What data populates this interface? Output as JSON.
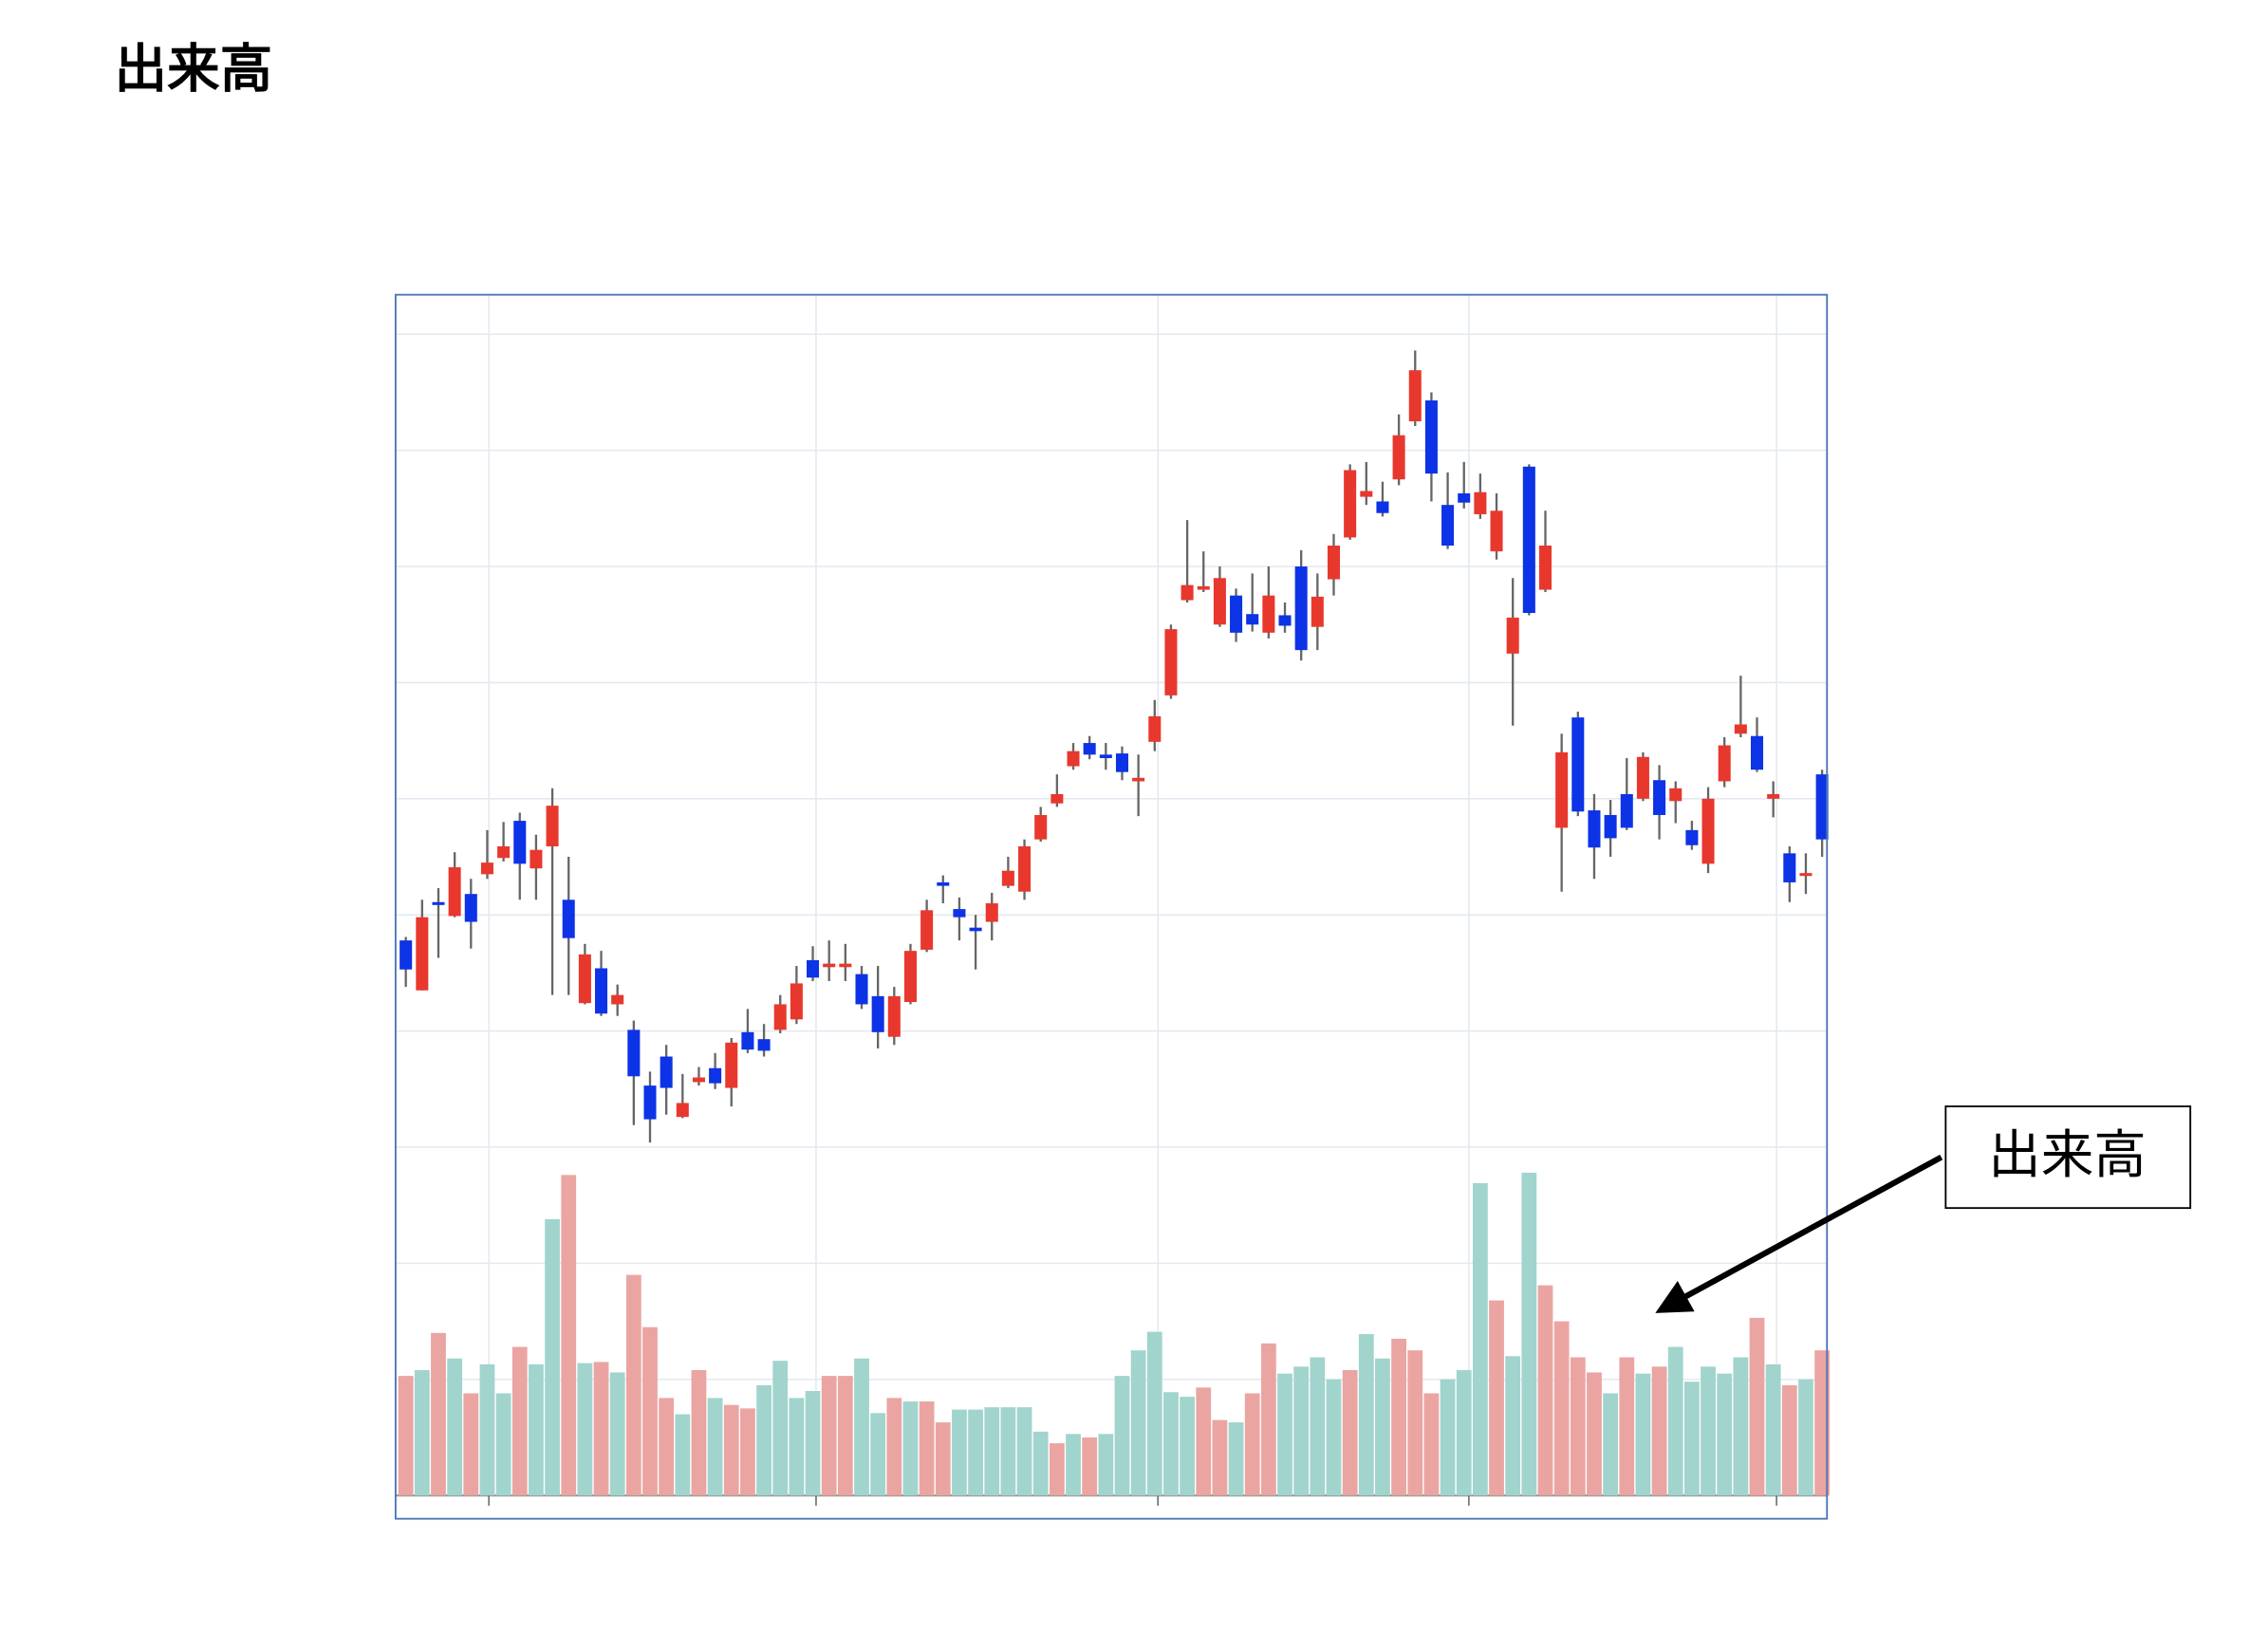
{
  "title": "出来高",
  "callout": "出来高",
  "chart_data": {
    "type": "candlestick",
    "xlim": [
      -0.63,
      87.3
    ],
    "ylim": [
      -2,
      103.4
    ],
    "xgrid": [
      5.1,
      25.2,
      46.2,
      65.3,
      84.2
    ],
    "ygrid": [
      0,
      10,
      20,
      30,
      40,
      50,
      60,
      70,
      80,
      90,
      100
    ],
    "up_color": "#e8382d",
    "down_color": "#0d33e6",
    "wick_color": "#666666",
    "open": [
      47.8,
      43.5,
      51.1,
      49.9,
      51.8,
      53.5,
      54.9,
      58.1,
      54,
      55.9,
      51.3,
      42.4,
      45.4,
      42.3,
      40.1,
      35.3,
      37.8,
      32.6,
      35.6,
      36.8,
      35.1,
      39.9,
      39.3,
      40.1,
      41,
      46.1,
      45.5,
      45.5,
      44.9,
      43,
      39.5,
      42.5,
      47,
      52.8,
      50.5,
      48.9,
      49.4,
      52.5,
      52,
      56.5,
      59.6,
      62.8,
      64.8,
      63.8,
      63.9,
      61.5,
      64.9,
      68.9,
      77.1,
      78,
      75,
      77.5,
      75.9,
      74.3,
      75.8,
      80,
      74.8,
      78.9,
      82.5,
      86,
      85.6,
      87.5,
      92.5,
      94.3,
      85.3,
      86.3,
      84.5,
      81.3,
      72.5,
      88.6,
      78,
      57.5,
      67,
      59,
      58.6,
      60.4,
      60,
      61.6,
      59.8,
      57.3,
      54.4,
      61.5,
      65.6,
      65.4,
      60,
      55.3,
      53.4,
      62.1
    ],
    "high": [
      48.1,
      51.3,
      52.3,
      55.4,
      53.1,
      57.3,
      58,
      58.8,
      56.9,
      60.9,
      55,
      47.5,
      46.9,
      44,
      40.9,
      36.5,
      38.8,
      36.3,
      36.9,
      38.1,
      39.4,
      41.9,
      40.6,
      43.1,
      45.6,
      47.3,
      47.8,
      47.5,
      45.6,
      45.6,
      43.8,
      47.5,
      51.3,
      53.4,
      51.5,
      50,
      51.9,
      55,
      56.5,
      59.3,
      62.1,
      64.8,
      65.4,
      64.8,
      64.5,
      63.8,
      68.5,
      75,
      84,
      81.3,
      80,
      78.1,
      79.4,
      80,
      76.9,
      81.4,
      79.4,
      82.8,
      88.8,
      89,
      87.3,
      93.1,
      98.6,
      95,
      88.1,
      89,
      88,
      86.3,
      79,
      88.8,
      84.8,
      65.6,
      67.5,
      60.4,
      59.9,
      63.5,
      64,
      62.9,
      61.5,
      58.1,
      61,
      65.3,
      70.6,
      67,
      61.5,
      55.9,
      55.3,
      62.5
    ],
    "low": [
      43.8,
      43.5,
      46.3,
      49.8,
      47.1,
      53.1,
      54.6,
      51.3,
      51.3,
      43.1,
      43.1,
      42.3,
      41.3,
      41.3,
      31.9,
      30.4,
      32.8,
      32.5,
      35.3,
      35,
      33.5,
      38.1,
      37.8,
      39.8,
      40.6,
      44.3,
      44.3,
      44.3,
      41.9,
      38.5,
      38.8,
      42.3,
      46.8,
      51,
      47.8,
      45.3,
      47.8,
      52.3,
      51.3,
      56.3,
      59.3,
      62.5,
      63.4,
      62.5,
      61.6,
      58.5,
      64.1,
      68.6,
      76.9,
      77.8,
      74.8,
      73.5,
      74.4,
      73.8,
      74.3,
      71.9,
      72.8,
      77.5,
      82.3,
      85.3,
      84.3,
      87,
      92.1,
      85.6,
      81.5,
      85,
      84.1,
      80.6,
      66.3,
      75.8,
      77.8,
      52,
      58.5,
      53.1,
      55,
      57.3,
      59.8,
      56.5,
      57.9,
      55.6,
      53.6,
      61,
      65.3,
      62.3,
      58.4,
      51.1,
      51.8,
      55
    ],
    "close": [
      45.3,
      49.8,
      50.9,
      54.1,
      49.4,
      54.5,
      55.9,
      54.4,
      55.6,
      59.4,
      48,
      46.6,
      41.5,
      43.1,
      36.1,
      32.4,
      35.1,
      33.8,
      36,
      35.5,
      39,
      38.4,
      38.3,
      42.3,
      44.1,
      44.6,
      45.8,
      45.8,
      42.3,
      39.9,
      43,
      46.9,
      50.4,
      52.5,
      49.8,
      48.6,
      51,
      53.8,
      55.9,
      58.6,
      60.4,
      64.1,
      63.8,
      63.5,
      62.3,
      61.8,
      67.1,
      74.6,
      78.4,
      78.3,
      79,
      74.3,
      75,
      77.5,
      74.9,
      72.8,
      77.4,
      81.8,
      88.3,
      86.5,
      84.6,
      91.3,
      96.9,
      88,
      81.8,
      85.5,
      86.4,
      84.8,
      75.6,
      76,
      81.8,
      64,
      58.9,
      55.8,
      56.6,
      57.5,
      63.6,
      58.6,
      60.9,
      56,
      60,
      64.6,
      66.4,
      62.5,
      60.4,
      52.8,
      53.6,
      56.5
    ],
    "volume": [
      10.3,
      10.8,
      14,
      11.8,
      8.8,
      11.3,
      8.8,
      12.8,
      11.3,
      23.8,
      27.6,
      11.4,
      11.5,
      10.6,
      19,
      14.5,
      8.4,
      7,
      10.8,
      8.4,
      7.8,
      7.5,
      9.5,
      11.6,
      8.4,
      9,
      10.3,
      10.3,
      11.8,
      7.1,
      8.4,
      8.1,
      8.1,
      6.3,
      7.4,
      7.4,
      7.6,
      7.6,
      7.6,
      5.5,
      4.5,
      5.3,
      5,
      5.3,
      10.3,
      12.5,
      14.1,
      8.9,
      8.5,
      9.3,
      6.5,
      6.3,
      8.8,
      13.1,
      10.5,
      11.1,
      11.9,
      10,
      10.8,
      13.9,
      11.8,
      13.5,
      12.5,
      8.8,
      10,
      10.8,
      26.9,
      16.8,
      12,
      27.8,
      18.1,
      15,
      11.9,
      10.6,
      8.8,
      11.9,
      10.5,
      11.1,
      12.8,
      9.8,
      11.1,
      10.5,
      11.9,
      15.3,
      11.3,
      9.5,
      10,
      12.5
    ],
    "volume_colors": [
      "#eaa5a2",
      "#a1d4cd",
      "#eaa5a2",
      "#a1d4cd",
      "#eaa5a2",
      "#a1d4cd",
      "#a1d4cd",
      "#eaa5a2",
      "#a1d4cd",
      "#a1d4cd",
      "#eaa5a2",
      "#a1d4cd",
      "#eaa5a2",
      "#a1d4cd",
      "#eaa5a2",
      "#eaa5a2",
      "#eaa5a2",
      "#a1d4cd",
      "#eaa5a2",
      "#a1d4cd",
      "#eaa5a2",
      "#eaa5a2",
      "#a1d4cd",
      "#a1d4cd",
      "#a1d4cd",
      "#a1d4cd",
      "#eaa5a2",
      "#eaa5a2",
      "#a1d4cd",
      "#a1d4cd",
      "#eaa5a2",
      "#a1d4cd",
      "#eaa5a2",
      "#eaa5a2",
      "#a1d4cd",
      "#a1d4cd",
      "#a1d4cd",
      "#a1d4cd",
      "#a1d4cd",
      "#a1d4cd",
      "#eaa5a2",
      "#a1d4cd",
      "#eaa5a2",
      "#a1d4cd",
      "#a1d4cd",
      "#a1d4cd",
      "#a1d4cd",
      "#a1d4cd",
      "#a1d4cd",
      "#eaa5a2",
      "#eaa5a2",
      "#a1d4cd",
      "#eaa5a2",
      "#eaa5a2",
      "#a1d4cd",
      "#a1d4cd",
      "#a1d4cd",
      "#a1d4cd",
      "#eaa5a2",
      "#a1d4cd",
      "#a1d4cd",
      "#eaa5a2",
      "#eaa5a2",
      "#eaa5a2",
      "#a1d4cd",
      "#a1d4cd",
      "#a1d4cd",
      "#eaa5a2",
      "#a1d4cd",
      "#a1d4cd",
      "#eaa5a2",
      "#eaa5a2",
      "#eaa5a2",
      "#eaa5a2",
      "#a1d4cd",
      "#eaa5a2",
      "#a1d4cd",
      "#eaa5a2",
      "#a1d4cd",
      "#a1d4cd",
      "#a1d4cd",
      "#a1d4cd",
      "#a1d4cd",
      "#eaa5a2",
      "#a1d4cd",
      "#eaa5a2",
      "#a1d4cd",
      "#eaa5a2"
    ]
  }
}
